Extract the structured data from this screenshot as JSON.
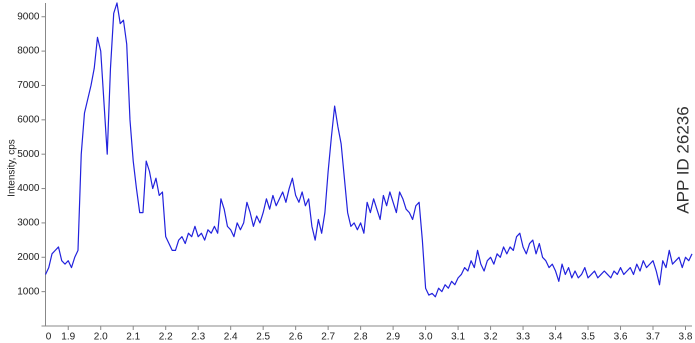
{
  "chart_data": {
    "type": "line",
    "y_label": "Intensity, cps",
    "annotation": "APP ID 26236",
    "color": "#2222dd",
    "x": [
      1.83,
      1.84,
      1.85,
      1.86,
      1.87,
      1.88,
      1.89,
      1.9,
      1.91,
      1.92,
      1.93,
      1.94,
      1.95,
      1.96,
      1.97,
      1.98,
      1.99,
      2.0,
      2.01,
      2.02,
      2.03,
      2.04,
      2.05,
      2.06,
      2.07,
      2.08,
      2.09,
      2.1,
      2.11,
      2.12,
      2.13,
      2.14,
      2.15,
      2.16,
      2.17,
      2.18,
      2.19,
      2.2,
      2.21,
      2.22,
      2.23,
      2.24,
      2.25,
      2.26,
      2.27,
      2.28,
      2.29,
      2.3,
      2.31,
      2.32,
      2.33,
      2.34,
      2.35,
      2.36,
      2.37,
      2.38,
      2.39,
      2.4,
      2.41,
      2.42,
      2.43,
      2.44,
      2.45,
      2.46,
      2.47,
      2.48,
      2.49,
      2.5,
      2.51,
      2.52,
      2.53,
      2.54,
      2.55,
      2.56,
      2.57,
      2.58,
      2.59,
      2.6,
      2.61,
      2.62,
      2.63,
      2.64,
      2.65,
      2.66,
      2.67,
      2.68,
      2.69,
      2.7,
      2.71,
      2.72,
      2.73,
      2.74,
      2.75,
      2.76,
      2.77,
      2.78,
      2.79,
      2.8,
      2.81,
      2.82,
      2.83,
      2.84,
      2.85,
      2.86,
      2.87,
      2.88,
      2.89,
      2.9,
      2.91,
      2.92,
      2.93,
      2.94,
      2.95,
      2.96,
      2.97,
      2.98,
      2.99,
      3.0,
      3.01,
      3.02,
      3.03,
      3.04,
      3.05,
      3.06,
      3.07,
      3.08,
      3.09,
      3.1,
      3.11,
      3.12,
      3.13,
      3.14,
      3.15,
      3.16,
      3.17,
      3.18,
      3.19,
      3.2,
      3.21,
      3.22,
      3.23,
      3.24,
      3.25,
      3.26,
      3.27,
      3.28,
      3.29,
      3.3,
      3.31,
      3.32,
      3.33,
      3.34,
      3.35,
      3.36,
      3.37,
      3.38,
      3.39,
      3.4,
      3.41,
      3.42,
      3.43,
      3.44,
      3.45,
      3.46,
      3.47,
      3.48,
      3.49,
      3.5,
      3.51,
      3.52,
      3.53,
      3.54,
      3.55,
      3.56,
      3.57,
      3.58,
      3.59,
      3.6,
      3.61,
      3.62,
      3.63,
      3.64,
      3.65,
      3.66,
      3.67,
      3.68,
      3.69,
      3.7,
      3.71,
      3.72,
      3.73,
      3.74,
      3.75,
      3.76,
      3.77,
      3.78,
      3.79,
      3.8,
      3.81,
      3.82
    ],
    "values": [
      1500,
      1700,
      2100,
      2200,
      2300,
      1900,
      1800,
      1900,
      1700,
      2000,
      2200,
      5000,
      6200,
      6600,
      7000,
      7500,
      8400,
      8000,
      6500,
      5000,
      7500,
      9100,
      9400,
      8800,
      8900,
      8200,
      6000,
      4800,
      4000,
      3300,
      3300,
      4800,
      4500,
      4000,
      4300,
      3800,
      3900,
      2600,
      2400,
      2200,
      2200,
      2500,
      2600,
      2400,
      2700,
      2600,
      2900,
      2600,
      2700,
      2500,
      2800,
      2700,
      2900,
      2700,
      3700,
      3400,
      2900,
      2800,
      2600,
      3000,
      2800,
      3000,
      3600,
      3300,
      2900,
      3200,
      3000,
      3300,
      3700,
      3400,
      3800,
      3500,
      3700,
      3900,
      3600,
      4000,
      4300,
      3800,
      3600,
      3900,
      3500,
      3700,
      2900,
      2500,
      3100,
      2700,
      3300,
      4500,
      5500,
      6400,
      5800,
      5300,
      4300,
      3300,
      2900,
      3000,
      2800,
      3000,
      2700,
      3600,
      3300,
      3700,
      3400,
      3100,
      3800,
      3500,
      3900,
      3600,
      3300,
      3900,
      3700,
      3400,
      3300,
      3100,
      3500,
      3600,
      2500,
      1100,
      900,
      950,
      850,
      1100,
      1000,
      1200,
      1100,
      1300,
      1200,
      1400,
      1500,
      1700,
      1600,
      1900,
      1700,
      2200,
      1800,
      1600,
      1900,
      2000,
      1800,
      2100,
      2000,
      2300,
      2100,
      2300,
      2200,
      2600,
      2700,
      2300,
      2100,
      2400,
      2500,
      2100,
      2400,
      2000,
      1900,
      1700,
      1800,
      1600,
      1300,
      1800,
      1500,
      1700,
      1400,
      1600,
      1400,
      1500,
      1700,
      1400,
      1500,
      1600,
      1400,
      1500,
      1600,
      1500,
      1400,
      1600,
      1500,
      1700,
      1500,
      1600,
      1700,
      1500,
      1800,
      1600,
      1900,
      1700,
      1800,
      1900,
      1600,
      1200,
      1900,
      1700,
      2200,
      1800,
      1900,
      2000,
      1700,
      2000,
      1900,
      2100
    ],
    "xlim": [
      1.83,
      3.82
    ],
    "xticks": [
      1.9,
      {
        "value": 2,
        "label": "2.0"
      },
      2.1,
      2.2,
      2.3,
      2.4,
      2.5,
      2.6,
      2.7,
      2.8,
      2.9,
      {
        "value": 3,
        "label": "3.0"
      },
      3.1,
      3.2,
      3.3,
      3.4,
      3.5,
      3.6,
      3.7,
      3.8
    ],
    "ylim": [
      0,
      9400
    ],
    "yticks": [
      0,
      1000,
      2000,
      3000,
      4000,
      5000,
      6000,
      7000,
      8000,
      9000
    ]
  }
}
